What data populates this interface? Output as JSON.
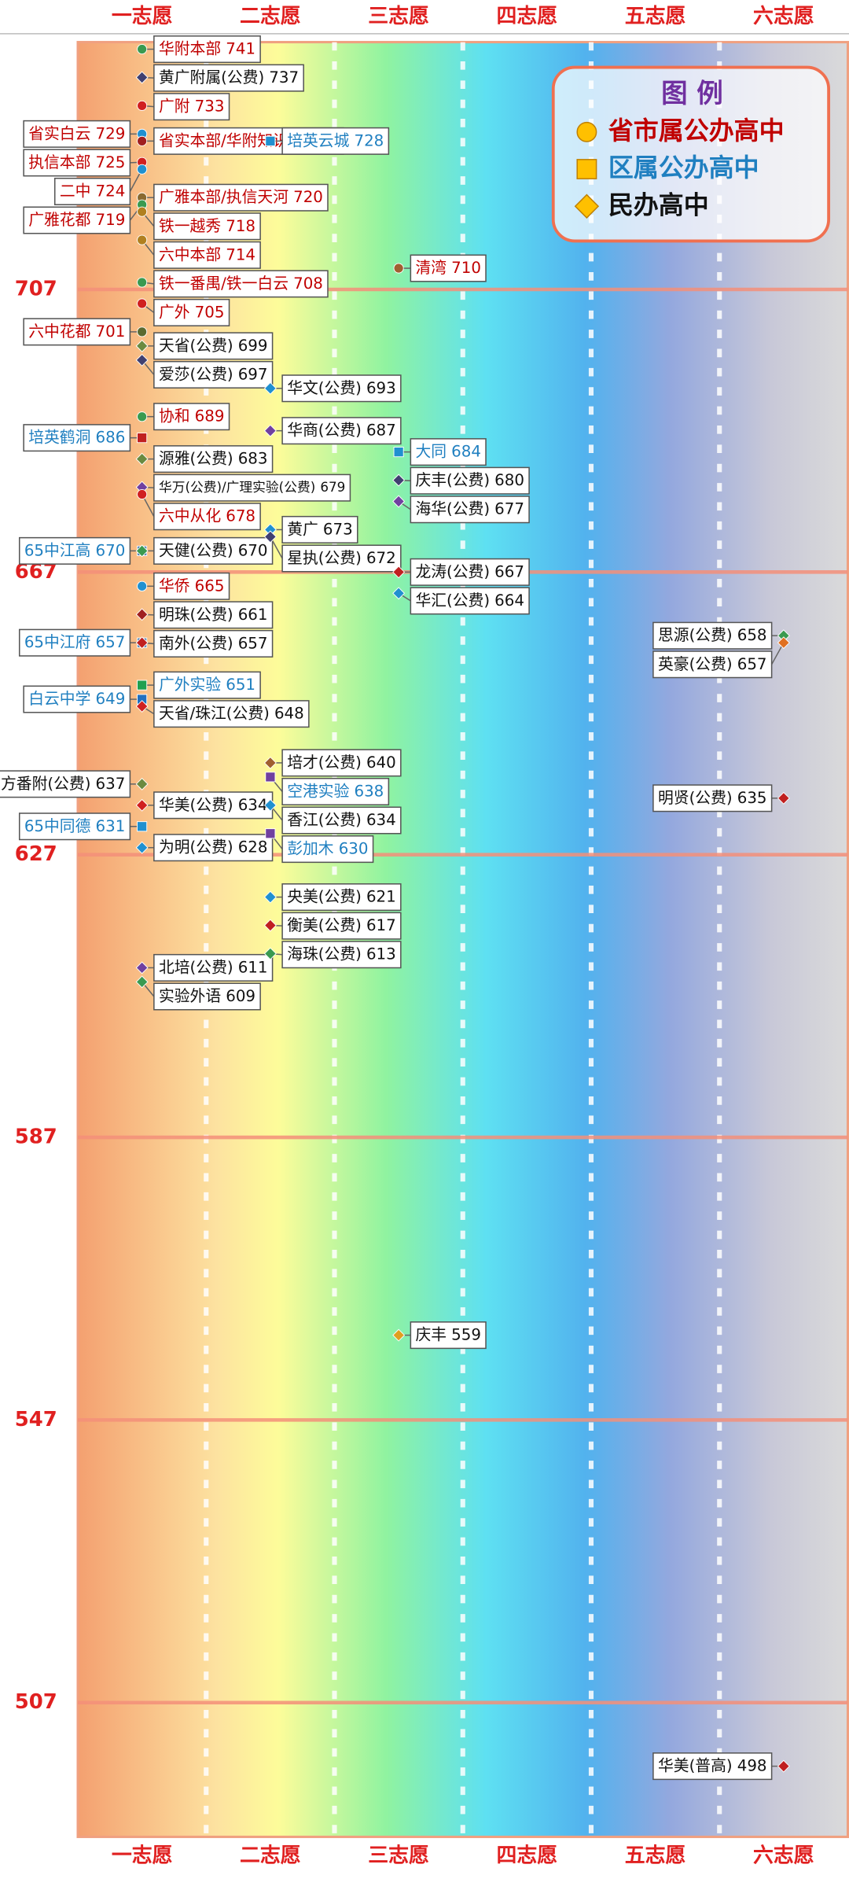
{
  "chart_data": {
    "type": "scatter",
    "categories": [
      "一志愿",
      "二志愿",
      "三志愿",
      "四志愿",
      "五志愿",
      "六志愿"
    ],
    "ylim": [
      488,
      742
    ],
    "yticks": [
      707,
      667,
      627,
      587,
      547,
      507
    ],
    "legend": {
      "title": "图 例",
      "items": [
        {
          "name": "省市属公办高中",
          "shape": "circle",
          "color": "#c00000"
        },
        {
          "name": "区属公办高中",
          "shape": "square",
          "color": "#1f7fc0"
        },
        {
          "name": "民办高中",
          "shape": "diamond",
          "color": "#111111"
        }
      ]
    },
    "points": [
      {
        "name": "华附本部",
        "score": 741,
        "col": 0,
        "kind": 0,
        "side": "right",
        "color": "#3a9a50"
      },
      {
        "name": "黄广附属(公费)",
        "score": 737,
        "col": 0,
        "kind": 2,
        "side": "right",
        "color": "#404070"
      },
      {
        "name": "广附",
        "score": 733,
        "col": 0,
        "kind": 0,
        "side": "right",
        "color": "#d02020"
      },
      {
        "name": "省实白云",
        "score": 729,
        "col": 0,
        "kind": 0,
        "side": "left",
        "color": "#2090d0"
      },
      {
        "name": "省实本部/华附知识城",
        "score": 728,
        "col": 0,
        "kind": 0,
        "side": "right",
        "color": "#a02020"
      },
      {
        "name": "执信本部",
        "score": 725,
        "col": 0,
        "kind": 0,
        "side": "left",
        "color": "#d02020"
      },
      {
        "name": "二中",
        "score": 724,
        "col": 0,
        "kind": 0,
        "side": "left",
        "color": "#2090d0"
      },
      {
        "name": "广雅本部/执信天河",
        "score": 720,
        "col": 0,
        "kind": 0,
        "side": "right",
        "color": "#8a6a30"
      },
      {
        "name": "广雅花都",
        "score": 719,
        "col": 0,
        "kind": 0,
        "side": "left",
        "color": "#3a9a50"
      },
      {
        "name": "铁一越秀",
        "score": 718,
        "col": 0,
        "kind": 0,
        "side": "right",
        "color": "#b08020"
      },
      {
        "name": "六中本部",
        "score": 714,
        "col": 0,
        "kind": 0,
        "side": "right",
        "color": "#b08020"
      },
      {
        "name": "铁一番禺/铁一白云",
        "score": 708,
        "col": 0,
        "kind": 0,
        "side": "right",
        "color": "#3a9a50"
      },
      {
        "name": "广外",
        "score": 705,
        "col": 0,
        "kind": 0,
        "side": "right",
        "color": "#d02020"
      },
      {
        "name": "六中花都",
        "score": 701,
        "col": 0,
        "kind": 0,
        "side": "left",
        "color": "#5a6a30"
      },
      {
        "name": "天省(公费)",
        "score": 699,
        "col": 0,
        "kind": 2,
        "side": "right",
        "color": "#6a8a40"
      },
      {
        "name": "爱莎(公费)",
        "score": 697,
        "col": 0,
        "kind": 2,
        "side": "right",
        "color": "#404070"
      },
      {
        "name": "协和",
        "score": 689,
        "col": 0,
        "kind": 0,
        "side": "right",
        "color": "#3a9a50"
      },
      {
        "name": "培英鹤洞",
        "score": 686,
        "col": 0,
        "kind": 1,
        "side": "left",
        "color": "#c02020"
      },
      {
        "name": "源雅(公费)",
        "score": 683,
        "col": 0,
        "kind": 2,
        "side": "right",
        "color": "#6a8a40"
      },
      {
        "name": "华万(公费)/广理实验(公费)",
        "score": 679,
        "col": 0,
        "kind": 2,
        "side": "right",
        "color": "#7040a0"
      },
      {
        "name": "六中从化",
        "score": 678,
        "col": 0,
        "kind": 0,
        "side": "right",
        "color": "#d02020"
      },
      {
        "name": "65中江高",
        "score": 670,
        "col": 0,
        "kind": 1,
        "side": "left",
        "color": "#5080b0"
      },
      {
        "name": "天健(公费)",
        "score": 670,
        "col": 0,
        "kind": 2,
        "side": "right",
        "color": "#3a9a50"
      },
      {
        "name": "华侨",
        "score": 665,
        "col": 0,
        "kind": 0,
        "side": "right",
        "color": "#2090d0"
      },
      {
        "name": "明珠(公费)",
        "score": 661,
        "col": 0,
        "kind": 2,
        "side": "right",
        "color": "#a02020"
      },
      {
        "name": "65中江府",
        "score": 657,
        "col": 0,
        "kind": 1,
        "side": "left",
        "color": "#5080b0"
      },
      {
        "name": "南外(公费)",
        "score": 657,
        "col": 0,
        "kind": 2,
        "side": "right",
        "color": "#c02020"
      },
      {
        "name": "广外实验",
        "score": 651,
        "col": 0,
        "kind": 1,
        "side": "right",
        "color": "#20a050"
      },
      {
        "name": "白云中学",
        "score": 649,
        "col": 0,
        "kind": 1,
        "side": "left",
        "color": "#2070c0"
      },
      {
        "name": "天省/珠江(公费)",
        "score": 648,
        "col": 0,
        "kind": 2,
        "side": "right",
        "color": "#d02020"
      },
      {
        "name": "南方番附(公费)",
        "score": 637,
        "col": 0,
        "kind": 2,
        "side": "left",
        "color": "#6a8a40"
      },
      {
        "name": "华美(公费)",
        "score": 634,
        "col": 0,
        "kind": 2,
        "side": "right",
        "color": "#d02020"
      },
      {
        "name": "65中同德",
        "score": 631,
        "col": 0,
        "kind": 1,
        "side": "left",
        "color": "#2090d0"
      },
      {
        "name": "为明(公费)",
        "score": 628,
        "col": 0,
        "kind": 2,
        "side": "right",
        "color": "#2090d0"
      },
      {
        "name": "北培(公费)",
        "score": 611,
        "col": 0,
        "kind": 2,
        "side": "right",
        "color": "#7040a0"
      },
      {
        "name": "实验外语",
        "score": 609,
        "col": 0,
        "kind": 2,
        "side": "right",
        "color": "#3a9a50"
      },
      {
        "name": "培英云城",
        "score": 728,
        "col": 1,
        "kind": 1,
        "side": "right",
        "color": "#2090d0"
      },
      {
        "name": "华文(公费)",
        "score": 693,
        "col": 1,
        "kind": 2,
        "side": "right",
        "color": "#2090d0"
      },
      {
        "name": "华商(公费)",
        "score": 687,
        "col": 1,
        "kind": 2,
        "side": "right",
        "color": "#7040a0"
      },
      {
        "name": "黄广",
        "score": 673,
        "col": 1,
        "kind": 2,
        "side": "right",
        "color": "#2090d0"
      },
      {
        "name": "星执(公费)",
        "score": 672,
        "col": 1,
        "kind": 2,
        "side": "right",
        "color": "#404070"
      },
      {
        "name": "培才(公费)",
        "score": 640,
        "col": 1,
        "kind": 2,
        "side": "right",
        "color": "#a06030"
      },
      {
        "name": "空港实验",
        "score": 638,
        "col": 1,
        "kind": 1,
        "side": "right",
        "color": "#7040a0"
      },
      {
        "name": "香江(公费)",
        "score": 634,
        "col": 1,
        "kind": 2,
        "side": "right",
        "color": "#2090d0"
      },
      {
        "name": "彭加木",
        "score": 630,
        "col": 1,
        "kind": 1,
        "side": "right",
        "color": "#7040a0"
      },
      {
        "name": "央美(公费)",
        "score": 621,
        "col": 1,
        "kind": 2,
        "side": "right",
        "color": "#2090d0"
      },
      {
        "name": "衡美(公费)",
        "score": 617,
        "col": 1,
        "kind": 2,
        "side": "right",
        "color": "#c02020"
      },
      {
        "name": "海珠(公费)",
        "score": 613,
        "col": 1,
        "kind": 2,
        "side": "right",
        "color": "#3a9a50"
      },
      {
        "name": "清湾",
        "score": 710,
        "col": 2,
        "kind": 0,
        "side": "right",
        "color": "#a06030"
      },
      {
        "name": "大同",
        "score": 684,
        "col": 2,
        "kind": 1,
        "side": "right",
        "color": "#2090d0"
      },
      {
        "name": "庆丰(公费)",
        "score": 680,
        "col": 2,
        "kind": 2,
        "side": "right",
        "color": "#404070"
      },
      {
        "name": "海华(公费)",
        "score": 677,
        "col": 2,
        "kind": 2,
        "side": "right",
        "color": "#7040a0"
      },
      {
        "name": "龙涛(公费)",
        "score": 667,
        "col": 2,
        "kind": 2,
        "side": "right",
        "color": "#c02020"
      },
      {
        "name": "华汇(公费)",
        "score": 664,
        "col": 2,
        "kind": 2,
        "side": "right",
        "color": "#2090d0"
      },
      {
        "name": "庆丰",
        "score": 559,
        "col": 2,
        "kind": 2,
        "side": "right",
        "color": "#e0a020"
      },
      {
        "name": "思源(公费)",
        "score": 658,
        "col": 5,
        "kind": 2,
        "side": "left",
        "color": "#3a9a50"
      },
      {
        "name": "英豪(公费)",
        "score": 657,
        "col": 5,
        "kind": 2,
        "side": "left",
        "color": "#e07020"
      },
      {
        "name": "明贤(公费)",
        "score": 635,
        "col": 5,
        "kind": 2,
        "side": "left",
        "color": "#c02020"
      },
      {
        "name": "华美(普高)",
        "score": 498,
        "col": 5,
        "kind": 2,
        "side": "left",
        "color": "#c02020"
      }
    ]
  }
}
